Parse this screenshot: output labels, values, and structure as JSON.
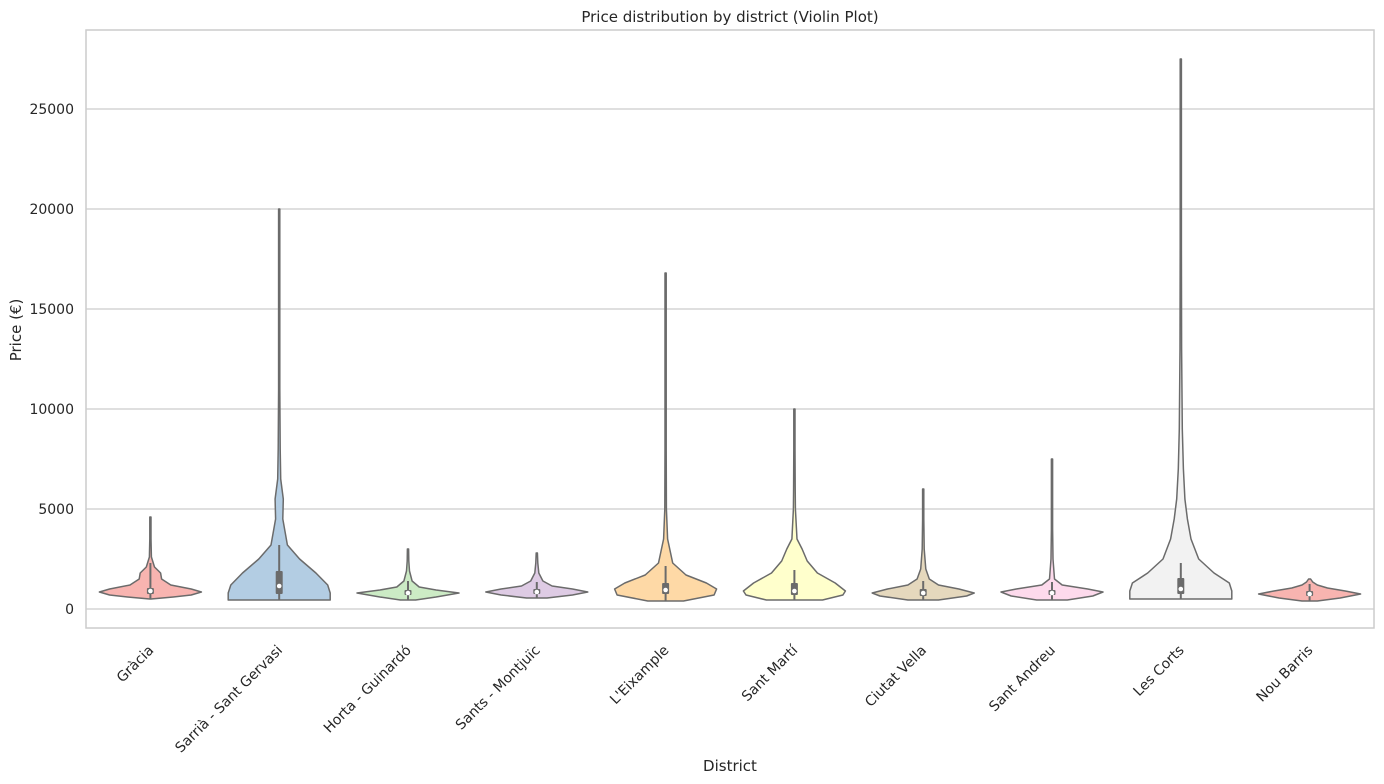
{
  "chart_data": {
    "type": "violin",
    "title": "Price distribution by district (Violin Plot)",
    "xlabel": "District",
    "ylabel": "Price (€)",
    "ylim": [
      -950,
      28950
    ],
    "yticks": [
      0,
      5000,
      10000,
      15000,
      20000,
      25000
    ],
    "grid": "horizontal",
    "categories": [
      "Gràcia",
      "Sarrià - Sant Gervasi",
      "Horta - Guinardó",
      "Sants - Montjuïc",
      "L'Eixample",
      "Sant Martí",
      "Ciutat Vella",
      "Sant Andreu",
      "Les Corts",
      "Nou Barris"
    ],
    "colors": [
      "#f8b4b0",
      "#b3cde3",
      "#ccebc5",
      "#decbe4",
      "#fed9a6",
      "#ffffcc",
      "#e5d8bd",
      "#fddaec",
      "#f2f2f2",
      "#f8b4b0"
    ],
    "series": [
      {
        "category": "Gràcia",
        "min": 500,
        "q1": 750,
        "median": 900,
        "q3": 1050,
        "whisker_high": 2300,
        "max": 4600,
        "mode": 850,
        "density": [
          [
            500,
            0.0
          ],
          [
            600,
            0.45
          ],
          [
            700,
            0.8
          ],
          [
            850,
            1.0
          ],
          [
            1000,
            0.8
          ],
          [
            1200,
            0.4
          ],
          [
            1500,
            0.22
          ],
          [
            1800,
            0.2
          ],
          [
            2100,
            0.08
          ],
          [
            2600,
            0.02
          ],
          [
            3500,
            0.01
          ],
          [
            4600,
            0.01
          ]
        ]
      },
      {
        "category": "Sarrià - Sant Gervasi",
        "min": 450,
        "q1": 750,
        "median": 1150,
        "q3": 1900,
        "whisker_high": 3200,
        "max": 20000,
        "mode": 1000,
        "density": [
          [
            450,
            1.0
          ],
          [
            800,
            1.0
          ],
          [
            1200,
            0.95
          ],
          [
            1800,
            0.72
          ],
          [
            2500,
            0.4
          ],
          [
            3200,
            0.16
          ],
          [
            4500,
            0.07
          ],
          [
            5500,
            0.08
          ],
          [
            6500,
            0.03
          ],
          [
            8000,
            0.02
          ],
          [
            11000,
            0.01
          ],
          [
            15000,
            0.01
          ],
          [
            20000,
            0.01
          ]
        ]
      },
      {
        "category": "Horta - Guinardó",
        "min": 450,
        "q1": 700,
        "median": 800,
        "q3": 950,
        "whisker_high": 1400,
        "max": 3000,
        "mode": 800,
        "density": [
          [
            450,
            0.15
          ],
          [
            600,
            0.55
          ],
          [
            800,
            1.0
          ],
          [
            950,
            0.55
          ],
          [
            1100,
            0.22
          ],
          [
            1400,
            0.08
          ],
          [
            1900,
            0.03
          ],
          [
            2400,
            0.015
          ],
          [
            3000,
            0.01
          ]
        ]
      },
      {
        "category": "Sants - Montjuïc",
        "min": 550,
        "q1": 750,
        "median": 850,
        "q3": 1000,
        "whisker_high": 1350,
        "max": 2800,
        "mode": 850,
        "density": [
          [
            550,
            0.2
          ],
          [
            700,
            0.7
          ],
          [
            850,
            1.0
          ],
          [
            1000,
            0.7
          ],
          [
            1150,
            0.3
          ],
          [
            1400,
            0.12
          ],
          [
            1800,
            0.04
          ],
          [
            2300,
            0.02
          ],
          [
            2800,
            0.01
          ]
        ]
      },
      {
        "category": "L'Eixample",
        "min": 400,
        "q1": 750,
        "median": 950,
        "q3": 1300,
        "whisker_high": 2150,
        "max": 16800,
        "mode": 950,
        "density": [
          [
            400,
            0.35
          ],
          [
            700,
            0.95
          ],
          [
            1000,
            1.0
          ],
          [
            1300,
            0.8
          ],
          [
            1700,
            0.4
          ],
          [
            2300,
            0.14
          ],
          [
            3500,
            0.04
          ],
          [
            5000,
            0.015
          ],
          [
            8000,
            0.01
          ],
          [
            12000,
            0.005
          ],
          [
            16800,
            0.005
          ]
        ]
      },
      {
        "category": "Sant Martí",
        "min": 450,
        "q1": 700,
        "median": 900,
        "q3": 1300,
        "whisker_high": 1950,
        "max": 10000,
        "mode": 900,
        "density": [
          [
            450,
            0.55
          ],
          [
            700,
            0.95
          ],
          [
            900,
            1.0
          ],
          [
            1300,
            0.8
          ],
          [
            1800,
            0.45
          ],
          [
            2400,
            0.25
          ],
          [
            3000,
            0.15
          ],
          [
            3500,
            0.05
          ],
          [
            5000,
            0.02
          ],
          [
            6000,
            0.015
          ],
          [
            8000,
            0.01
          ],
          [
            10000,
            0.005
          ]
        ]
      },
      {
        "category": "Ciutat Vella",
        "min": 450,
        "q1": 650,
        "median": 800,
        "q3": 1000,
        "whisker_high": 1400,
        "max": 6000,
        "mode": 800,
        "density": [
          [
            450,
            0.3
          ],
          [
            650,
            0.85
          ],
          [
            800,
            1.0
          ],
          [
            1000,
            0.7
          ],
          [
            1200,
            0.3
          ],
          [
            1500,
            0.12
          ],
          [
            2000,
            0.05
          ],
          [
            3000,
            0.02
          ],
          [
            4500,
            0.01
          ],
          [
            6000,
            0.005
          ]
        ]
      },
      {
        "category": "Sant Andreu",
        "min": 450,
        "q1": 700,
        "median": 800,
        "q3": 950,
        "whisker_high": 1350,
        "max": 7500,
        "mode": 850,
        "density": [
          [
            450,
            0.3
          ],
          [
            650,
            0.8
          ],
          [
            850,
            1.0
          ],
          [
            1000,
            0.7
          ],
          [
            1200,
            0.2
          ],
          [
            1500,
            0.05
          ],
          [
            2500,
            0.02
          ],
          [
            4000,
            0.01
          ],
          [
            6000,
            0.005
          ],
          [
            7500,
            0.005
          ]
        ]
      },
      {
        "category": "Les Corts",
        "min": 500,
        "q1": 750,
        "median": 1000,
        "q3": 1550,
        "whisker_high": 2300,
        "max": 27500,
        "mode": 1100,
        "density": [
          [
            500,
            1.0
          ],
          [
            900,
            1.0
          ],
          [
            1300,
            0.95
          ],
          [
            1800,
            0.65
          ],
          [
            2500,
            0.35
          ],
          [
            3500,
            0.2
          ],
          [
            4500,
            0.13
          ],
          [
            5500,
            0.08
          ],
          [
            7000,
            0.05
          ],
          [
            9000,
            0.03
          ],
          [
            13000,
            0.015
          ],
          [
            18000,
            0.01
          ],
          [
            27500,
            0.01
          ]
        ]
      },
      {
        "category": "Nou Barris",
        "min": 400,
        "q1": 650,
        "median": 750,
        "q3": 900,
        "whisker_high": 1250,
        "max": 1500,
        "mode": 750,
        "density": [
          [
            400,
            0.15
          ],
          [
            550,
            0.6
          ],
          [
            750,
            1.0
          ],
          [
            900,
            0.7
          ],
          [
            1050,
            0.35
          ],
          [
            1200,
            0.15
          ],
          [
            1350,
            0.06
          ],
          [
            1500,
            0.02
          ]
        ]
      }
    ]
  }
}
